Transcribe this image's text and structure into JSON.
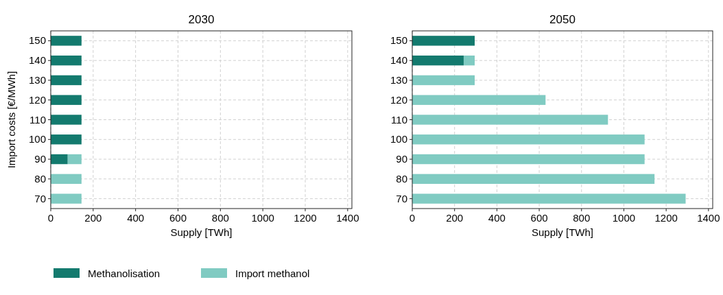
{
  "chart_data": [
    {
      "type": "bar",
      "title": "2030",
      "xlabel": "Supply [TWh]",
      "ylabel": "Import costs [€/MWh]",
      "orientation": "horizontal",
      "stacked": true,
      "categories": [
        "150",
        "140",
        "130",
        "120",
        "110",
        "100",
        "90",
        "80",
        "70"
      ],
      "series": [
        {
          "name": "Methanolisation",
          "color": "#137a6e",
          "values": [
            145,
            145,
            145,
            145,
            145,
            145,
            80,
            0,
            0
          ]
        },
        {
          "name": "Import methanol",
          "color": "#80cbc2",
          "values": [
            0,
            0,
            0,
            0,
            0,
            0,
            65,
            145,
            145
          ]
        }
      ],
      "xlim": [
        0,
        1420
      ],
      "xticks": [
        0,
        200,
        400,
        600,
        800,
        1000,
        1200,
        1400
      ],
      "grid": true,
      "legend": "bottom"
    },
    {
      "type": "bar",
      "title": "2050",
      "xlabel": "Supply [TWh]",
      "orientation": "horizontal",
      "stacked": true,
      "categories": [
        "150",
        "140",
        "130",
        "120",
        "110",
        "100",
        "90",
        "80",
        "70"
      ],
      "series": [
        {
          "color": "#137a6e",
          "values": [
            295,
            243,
            0,
            0,
            0,
            0,
            0,
            0,
            0
          ]
        },
        {
          "color": "#80cbc2",
          "values": [
            0,
            52,
            295,
            630,
            925,
            1098,
            1098,
            1145,
            1292
          ]
        }
      ],
      "xlim": [
        0,
        1420
      ],
      "xticks": [
        0,
        200,
        400,
        600,
        800,
        1000,
        1200,
        1400
      ],
      "grid": true
    }
  ]
}
